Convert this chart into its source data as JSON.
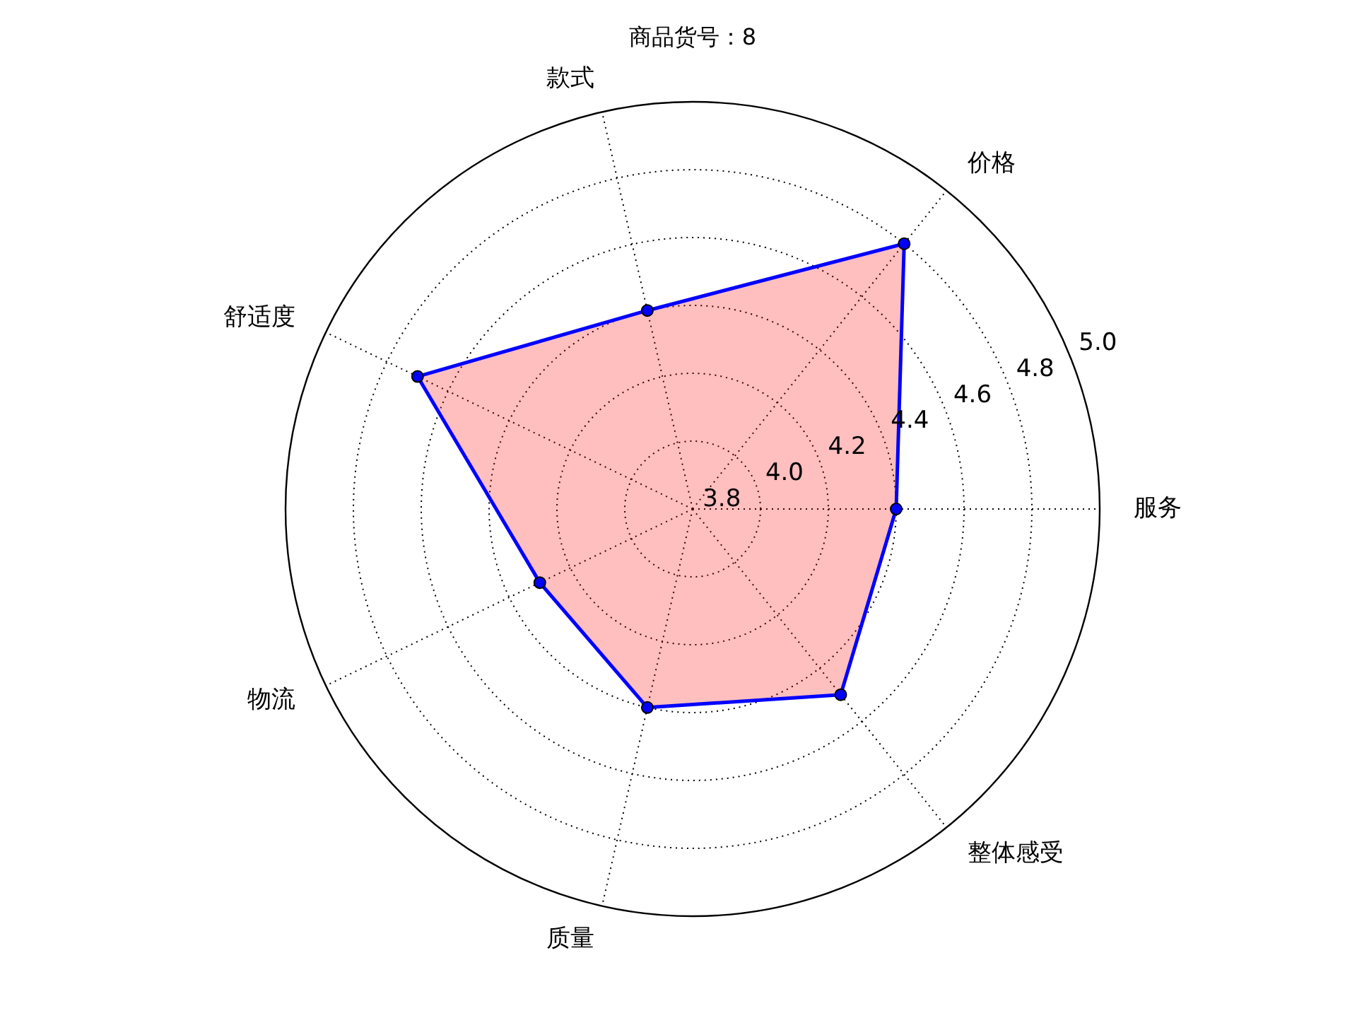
{
  "chart_data": {
    "type": "radar",
    "title": "商品货号：8",
    "categories": [
      "款式",
      "价格",
      "服务",
      "整体感受",
      "质量",
      "物流",
      "舒适度"
    ],
    "ylim": [
      3.8,
      5.0
    ],
    "yticks": [
      3.8,
      {
        "value": 4.0,
        "label": "4.0"
      },
      4.2,
      4.4,
      4.6,
      4.8,
      {
        "value": 5.0,
        "label": "5.0"
      }
    ],
    "grid": true,
    "marker": "circle",
    "series": [
      {
        "color": "#0000ff",
        "values": [
          4.4,
          4.8,
          4.4,
          4.5,
          4.4,
          4.3,
          4.7
        ]
      }
    ]
  }
}
